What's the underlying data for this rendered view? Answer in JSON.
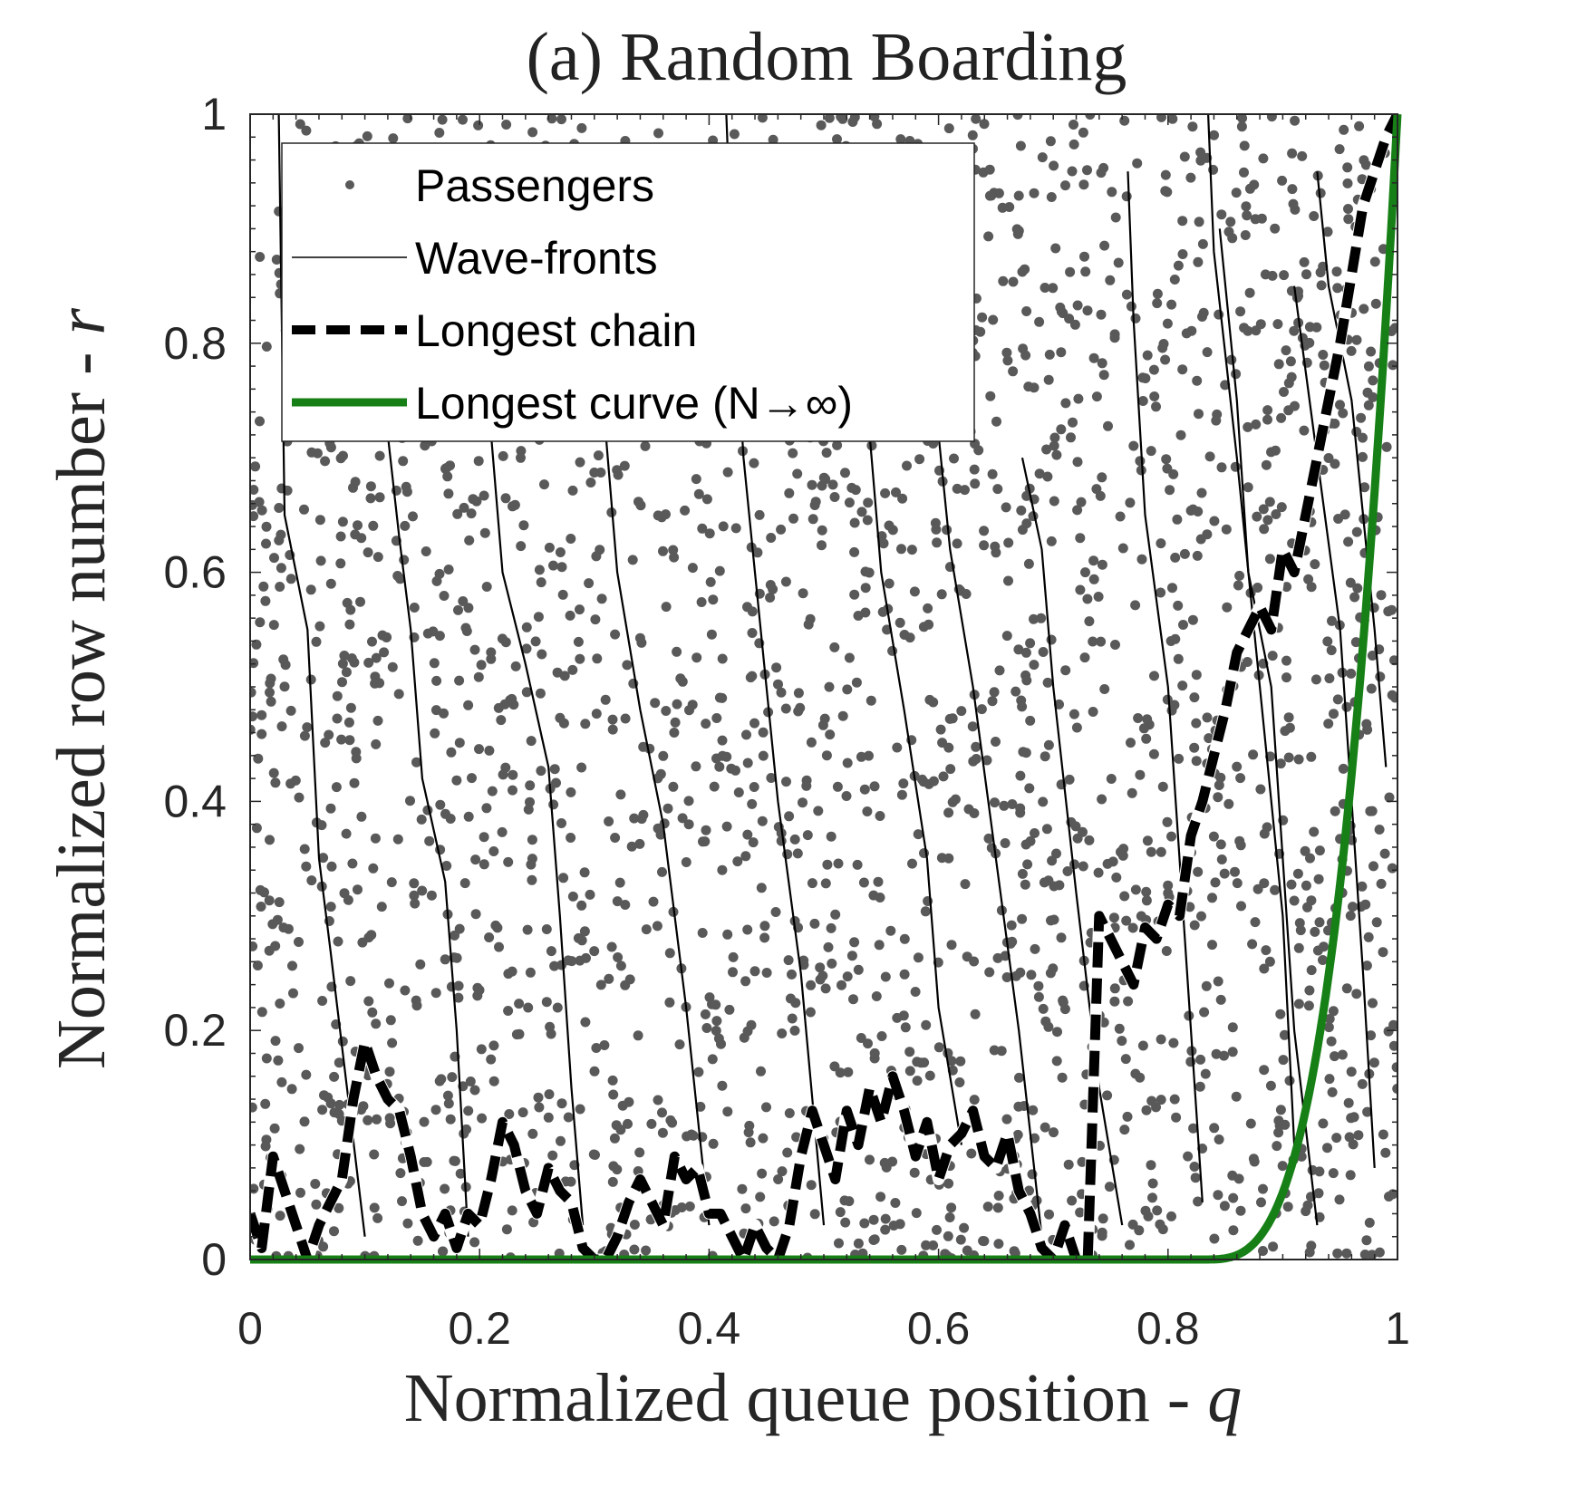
{
  "chart_data": {
    "type": "scatter",
    "title": "(a) Random Boarding",
    "xlabel": "Normalized queue position - q",
    "xlabel_text": "Normalized queue position - ",
    "xlabel_var": "q",
    "ylabel": "Normalized row number - r",
    "ylabel_text": "Normalized row number - ",
    "ylabel_var": "r",
    "xlim": [
      0,
      1
    ],
    "ylim": [
      0,
      1
    ],
    "xticks": [
      0,
      0.2,
      0.4,
      0.6,
      0.8,
      1
    ],
    "xtick_labels": [
      "0",
      "0.2",
      "0.4",
      "0.6",
      "0.8",
      "1"
    ],
    "yticks": [
      0,
      0.2,
      0.4,
      0.6,
      0.8,
      1
    ],
    "ytick_labels": [
      "0",
      "0.2",
      "0.4",
      "0.6",
      "0.8",
      "1"
    ],
    "grid": false,
    "legend_position": "top-left",
    "series": [
      {
        "name": "Passengers",
        "kind": "scatter",
        "color": "#595959",
        "approx_count": 2400,
        "distribution": "uniform random over unit square"
      },
      {
        "name": "Wave-fronts",
        "kind": "lines",
        "color": "#000000",
        "lines": [
          [
            [
              0.025,
              1.0
            ],
            [
              0.03,
              0.65
            ],
            [
              0.05,
              0.55
            ],
            [
              0.06,
              0.35
            ],
            [
              0.07,
              0.27
            ],
            [
              0.1,
              0.02
            ]
          ],
          [
            [
              0.12,
              0.72
            ],
            [
              0.13,
              0.63
            ],
            [
              0.14,
              0.55
            ],
            [
              0.15,
              0.42
            ],
            [
              0.17,
              0.33
            ],
            [
              0.18,
              0.2
            ],
            [
              0.19,
              0.02
            ]
          ],
          [
            [
              0.21,
              0.72
            ],
            [
              0.22,
              0.6
            ],
            [
              0.24,
              0.52
            ],
            [
              0.26,
              0.43
            ],
            [
              0.27,
              0.3
            ],
            [
              0.28,
              0.15
            ],
            [
              0.29,
              0.03
            ]
          ],
          [
            [
              0.31,
              0.72
            ],
            [
              0.32,
              0.6
            ],
            [
              0.34,
              0.48
            ],
            [
              0.36,
              0.38
            ],
            [
              0.38,
              0.22
            ],
            [
              0.4,
              0.03
            ]
          ],
          [
            [
              0.415,
              1.0
            ],
            [
              0.42,
              0.87
            ],
            [
              0.43,
              0.7
            ],
            [
              0.44,
              0.6
            ],
            [
              0.45,
              0.5
            ],
            [
              0.46,
              0.4
            ],
            [
              0.48,
              0.25
            ],
            [
              0.5,
              0.03
            ]
          ],
          [
            [
              0.54,
              0.72
            ],
            [
              0.55,
              0.6
            ],
            [
              0.57,
              0.48
            ],
            [
              0.59,
              0.35
            ],
            [
              0.6,
              0.22
            ],
            [
              0.62,
              0.1
            ]
          ],
          [
            [
              0.6,
              0.72
            ],
            [
              0.61,
              0.62
            ],
            [
              0.63,
              0.5
            ],
            [
              0.65,
              0.35
            ],
            [
              0.67,
              0.2
            ],
            [
              0.69,
              0.02
            ]
          ],
          [
            [
              0.673,
              0.7
            ],
            [
              0.69,
              0.62
            ],
            [
              0.7,
              0.5
            ],
            [
              0.72,
              0.32
            ],
            [
              0.74,
              0.15
            ],
            [
              0.76,
              0.03
            ]
          ],
          [
            [
              0.765,
              0.95
            ],
            [
              0.77,
              0.82
            ],
            [
              0.78,
              0.65
            ],
            [
              0.8,
              0.5
            ],
            [
              0.81,
              0.35
            ],
            [
              0.82,
              0.2
            ],
            [
              0.83,
              0.05
            ]
          ],
          [
            [
              0.835,
              1.0
            ],
            [
              0.84,
              0.88
            ],
            [
              0.86,
              0.7
            ],
            [
              0.88,
              0.5
            ],
            [
              0.9,
              0.3
            ],
            [
              0.91,
              0.1
            ]
          ],
          [
            [
              0.845,
              0.9
            ],
            [
              0.86,
              0.75
            ],
            [
              0.87,
              0.6
            ],
            [
              0.89,
              0.5
            ],
            [
              0.9,
              0.35
            ],
            [
              0.91,
              0.2
            ],
            [
              0.93,
              0.03
            ]
          ],
          [
            [
              0.91,
              0.85
            ],
            [
              0.93,
              0.7
            ],
            [
              0.95,
              0.55
            ],
            [
              0.96,
              0.4
            ],
            [
              0.97,
              0.25
            ],
            [
              0.98,
              0.08
            ]
          ],
          [
            [
              0.93,
              0.95
            ],
            [
              0.94,
              0.85
            ],
            [
              0.96,
              0.75
            ],
            [
              0.97,
              0.65
            ],
            [
              0.98,
              0.55
            ],
            [
              0.99,
              0.43
            ]
          ]
        ]
      },
      {
        "name": "Longest chain",
        "kind": "dashed-line",
        "color": "#000000",
        "x": [
          0.0,
          0.01,
          0.02,
          0.03,
          0.04,
          0.05,
          0.06,
          0.07,
          0.08,
          0.09,
          0.1,
          0.11,
          0.12,
          0.13,
          0.14,
          0.15,
          0.16,
          0.17,
          0.18,
          0.19,
          0.2,
          0.21,
          0.22,
          0.23,
          0.24,
          0.25,
          0.26,
          0.27,
          0.28,
          0.29,
          0.3,
          0.31,
          0.32,
          0.33,
          0.34,
          0.35,
          0.36,
          0.37,
          0.38,
          0.39,
          0.4,
          0.41,
          0.42,
          0.43,
          0.44,
          0.45,
          0.46,
          0.47,
          0.48,
          0.49,
          0.5,
          0.51,
          0.52,
          0.53,
          0.54,
          0.55,
          0.56,
          0.57,
          0.58,
          0.59,
          0.6,
          0.61,
          0.62,
          0.63,
          0.64,
          0.65,
          0.66,
          0.67,
          0.68,
          0.69,
          0.7,
          0.71,
          0.72,
          0.73,
          0.74,
          0.75,
          0.76,
          0.77,
          0.78,
          0.79,
          0.8,
          0.81,
          0.82,
          0.83,
          0.84,
          0.85,
          0.86,
          0.87,
          0.88,
          0.89,
          0.9,
          0.91,
          0.92,
          0.93,
          0.94,
          0.95,
          0.96,
          0.97,
          0.98,
          0.99,
          1.0
        ],
        "y": [
          0.04,
          0.01,
          0.09,
          0.06,
          0.03,
          0.0,
          0.03,
          0.05,
          0.07,
          0.14,
          0.19,
          0.16,
          0.14,
          0.13,
          0.09,
          0.04,
          0.02,
          0.04,
          0.01,
          0.04,
          0.03,
          0.07,
          0.12,
          0.1,
          0.06,
          0.04,
          0.08,
          0.06,
          0.05,
          0.01,
          0.0,
          0.0,
          0.02,
          0.05,
          0.07,
          0.05,
          0.03,
          0.09,
          0.07,
          0.08,
          0.04,
          0.04,
          0.02,
          0.0,
          0.03,
          0.01,
          0.0,
          0.03,
          0.09,
          0.13,
          0.1,
          0.07,
          0.13,
          0.1,
          0.15,
          0.12,
          0.16,
          0.13,
          0.09,
          0.12,
          0.07,
          0.1,
          0.11,
          0.13,
          0.09,
          0.08,
          0.11,
          0.06,
          0.04,
          0.01,
          0.0,
          0.03,
          0.0,
          0.0,
          0.3,
          0.28,
          0.26,
          0.24,
          0.29,
          0.28,
          0.31,
          0.3,
          0.37,
          0.4,
          0.44,
          0.48,
          0.53,
          0.55,
          0.57,
          0.55,
          0.62,
          0.6,
          0.65,
          0.7,
          0.75,
          0.8,
          0.86,
          0.92,
          0.95,
          0.98,
          1.0
        ]
      },
      {
        "name": "Longest curve (N→∞)",
        "kind": "line",
        "color": "#168016",
        "curve": "r = 0 for q < 0.83; r rises steeply to 1 at q = 1"
      }
    ]
  }
}
